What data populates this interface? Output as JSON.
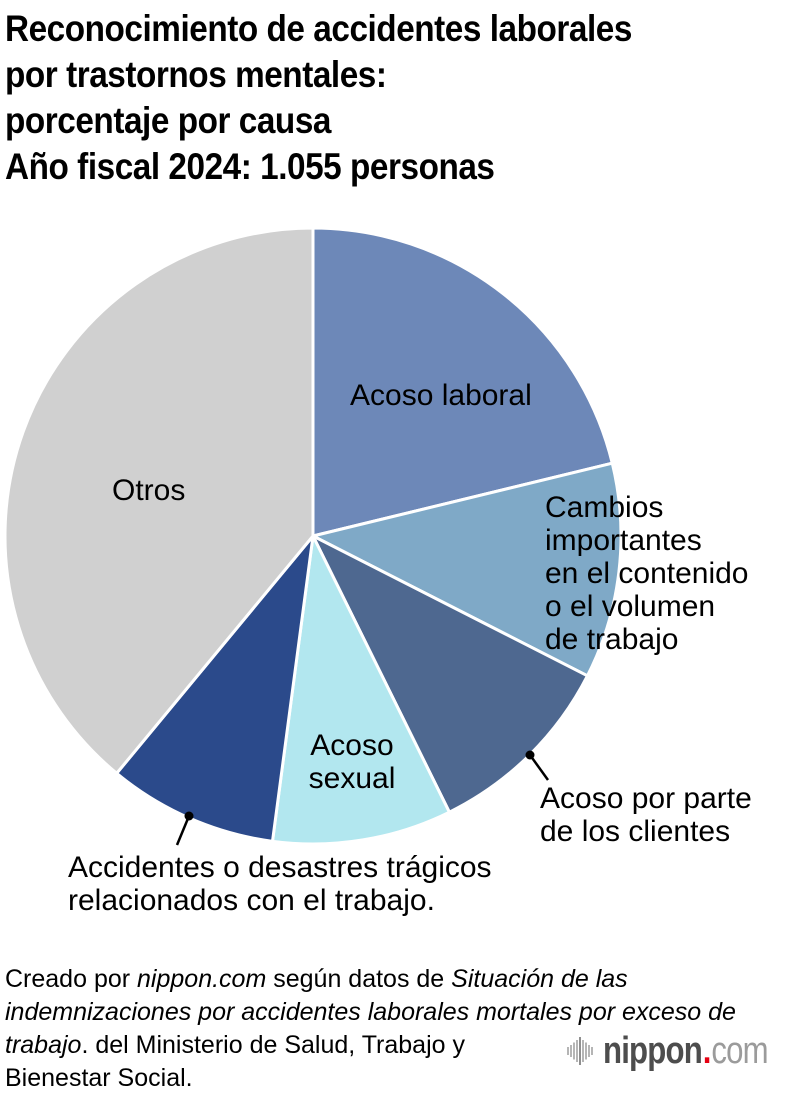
{
  "title": {
    "lines": [
      "Reconocimiento de accidentes laborales",
      "por trastornos mentales:",
      "porcentaje por causa",
      "Año fiscal 2024: 1.055 personas"
    ]
  },
  "chart_data": {
    "type": "pie",
    "title": "Reconocimiento de accidentes laborales por trastornos mentales: porcentaje por causa",
    "subtitle": "Año fiscal 2024: 1.055 personas",
    "total_persons": 1055,
    "units": "percent of total (estimated from slice angles)",
    "direction": "clockwise",
    "start_angle_deg": 0,
    "legend_position": "labels-on-chart",
    "segments": [
      {
        "key": "acoso-laboral",
        "label": "Acoso laboral",
        "value": 21.2,
        "color": "#6d88b8"
      },
      {
        "key": "cambios",
        "label": "Cambios importantes en el contenido o el volumen de trabajo",
        "value": 11.3,
        "color": "#7fa9c7"
      },
      {
        "key": "clientes",
        "label": "Acoso por parte de los clientes",
        "value": 10.2,
        "color": "#4e6890"
      },
      {
        "key": "acoso-sexual",
        "label": "Acoso sexual",
        "value": 9.4,
        "color": "#b2e7ef"
      },
      {
        "key": "accidentes",
        "label": "Accidentes o desastres trágicos relacionados con el trabajo.",
        "value": 8.9,
        "color": "#2b4a8b"
      },
      {
        "key": "otros",
        "label": "Otros",
        "value": 39.0,
        "color": "#d0d0d0"
      }
    ]
  },
  "labels": {
    "acoso_laboral": {
      "lines": [
        "Acoso laboral"
      ]
    },
    "cambios": {
      "lines": [
        "Cambios",
        "importantes",
        "en el contenido",
        "o el volumen",
        "de trabajo"
      ]
    },
    "clientes": {
      "lines": [
        "Acoso por parte",
        "de los clientes"
      ]
    },
    "acoso_sexual": {
      "lines": [
        "Acoso",
        "sexual"
      ]
    },
    "accidentes": {
      "lines": [
        "Accidentes o desastres trágicos",
        "relacionados con el trabajo."
      ]
    },
    "otros": {
      "lines": [
        "Otros"
      ]
    }
  },
  "footer": {
    "lines": [
      [
        {
          "t": "Creado por ",
          "i": false
        },
        {
          "t": "nippon.com",
          "i": true
        },
        {
          "t": " según datos de ",
          "i": false
        },
        {
          "t": "Situación de las",
          "i": true
        }
      ],
      [
        {
          "t": "indemnizaciones por accidentes laborales mortales por exceso de",
          "i": true
        }
      ],
      [
        {
          "t": "trabajo",
          "i": true
        },
        {
          "t": ". del Ministerio de Salud, Trabajo y",
          "i": false
        }
      ],
      [
        {
          "t": "Bienestar Social.",
          "i": false
        }
      ]
    ]
  },
  "logo": {
    "brand": "nippon",
    "dot": ".",
    "tld": "com",
    "brand_color": "#4d4d4d",
    "dot_color": "#e60012",
    "tld_color": "#9b9b9b"
  }
}
